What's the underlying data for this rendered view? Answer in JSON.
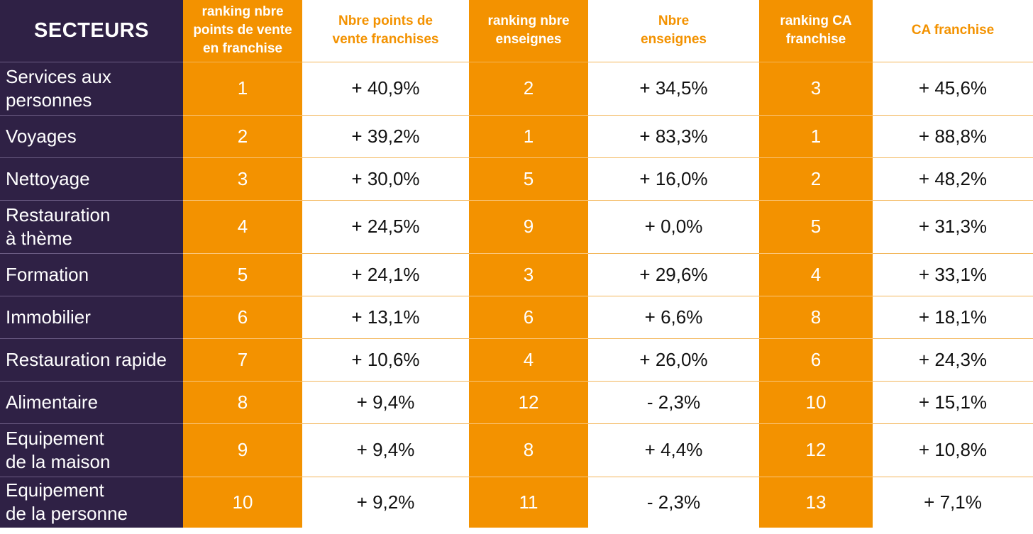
{
  "chart_data": {
    "type": "table",
    "columns": [
      "SECTEURS",
      "ranking nbre points de vente en franchise",
      "Nbre points de vente franchises",
      "ranking nbre enseignes",
      "Nbre enseignes",
      "ranking CA franchise",
      "CA franchise"
    ],
    "header": {
      "sector": "SECTEURS",
      "rank_pdv_l1": "ranking nbre",
      "rank_pdv_l2": "points de vente",
      "rank_pdv_l3": "en franchise",
      "pdv_l1": "Nbre points de",
      "pdv_l2": "vente franchises",
      "rank_ens_l1": "ranking nbre",
      "rank_ens_l2": "enseignes",
      "ens_l1": "Nbre",
      "ens_l2": "enseignes",
      "rank_ca_l1": "ranking CA",
      "rank_ca_l2": "franchise",
      "ca": "CA franchise"
    },
    "rows": [
      {
        "sector_l1": "Services aux",
        "sector_l2": "personnes",
        "rank_pdv": "1",
        "pdv": "+ 40,9%",
        "rank_ens": "2",
        "ens": "+ 34,5%",
        "rank_ca": "3",
        "ca": "+ 45,6%"
      },
      {
        "sector_l1": "Voyages",
        "sector_l2": "",
        "rank_pdv": "2",
        "pdv": "+ 39,2%",
        "rank_ens": "1",
        "ens": "+ 83,3%",
        "rank_ca": "1",
        "ca": "+ 88,8%"
      },
      {
        "sector_l1": "Nettoyage",
        "sector_l2": "",
        "rank_pdv": "3",
        "pdv": "+ 30,0%",
        "rank_ens": "5",
        "ens": "+ 16,0%",
        "rank_ca": "2",
        "ca": "+ 48,2%"
      },
      {
        "sector_l1": "Restauration",
        "sector_l2": "à thème",
        "rank_pdv": "4",
        "pdv": "+ 24,5%",
        "rank_ens": "9",
        "ens": "+ 0,0%",
        "rank_ca": "5",
        "ca": "+ 31,3%"
      },
      {
        "sector_l1": "Formation",
        "sector_l2": "",
        "rank_pdv": "5",
        "pdv": "+ 24,1%",
        "rank_ens": "3",
        "ens": "+ 29,6%",
        "rank_ca": "4",
        "ca": "+ 33,1%"
      },
      {
        "sector_l1": "Immobilier",
        "sector_l2": "",
        "rank_pdv": "6",
        "pdv": "+ 13,1%",
        "rank_ens": "6",
        "ens": "+ 6,6%",
        "rank_ca": "8",
        "ca": "+ 18,1%"
      },
      {
        "sector_l1": "Restauration rapide",
        "sector_l2": "",
        "rank_pdv": "7",
        "pdv": "+ 10,6%",
        "rank_ens": "4",
        "ens": "+ 26,0%",
        "rank_ca": "6",
        "ca": "+ 24,3%"
      },
      {
        "sector_l1": "Alimentaire",
        "sector_l2": "",
        "rank_pdv": "8",
        "pdv": "+ 9,4%",
        "rank_ens": "12",
        "ens": "- 2,3%",
        "rank_ca": "10",
        "ca": "+ 15,1%"
      },
      {
        "sector_l1": "Equipement",
        "sector_l2": "de la maison",
        "rank_pdv": "9",
        "pdv": "+ 9,4%",
        "rank_ens": "8",
        "ens": "+ 4,4%",
        "rank_ca": "12",
        "ca": "+ 10,8%"
      },
      {
        "sector_l1": "Equipement",
        "sector_l2": "de la personne",
        "rank_pdv": "10",
        "pdv": "+ 9,2%",
        "rank_ens": "11",
        "ens": "- 2,3%",
        "rank_ca": "13",
        "ca": "+ 7,1%"
      }
    ]
  },
  "colors": {
    "sector_background": "#2f2145",
    "ranking_background": "#f39200",
    "header_value_text": "#f39200",
    "value_text": "#111111"
  }
}
